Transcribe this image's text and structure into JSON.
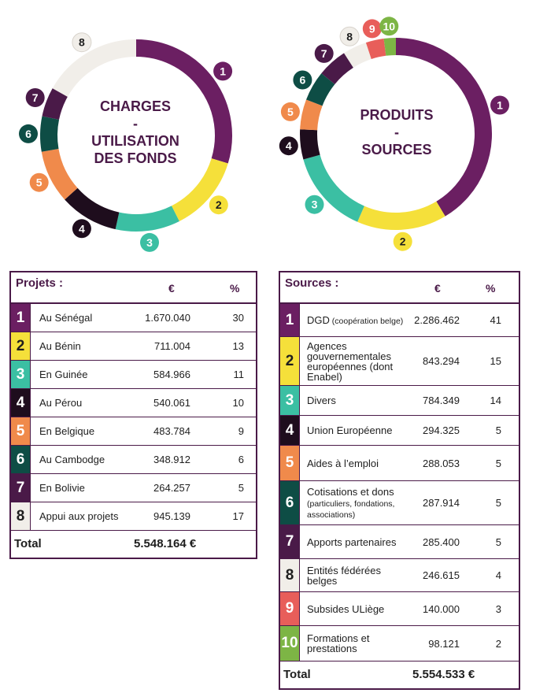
{
  "chart_data": [
    {
      "type": "pie",
      "title": "CHARGES - UTILISATION DES FONDS",
      "title_lines": [
        "CHARGES",
        "-",
        "UTILISATION",
        "DES FONDS"
      ],
      "header": "Projets :",
      "currency_header": "€",
      "percent_header": "%",
      "categories": [
        "Au Sénégal",
        "Au Bénin",
        "En Guinée",
        "Au Pérou",
        "En Belgique",
        "Au Cambodge",
        "En Bolivie",
        "Appui aux projets"
      ],
      "numbers": [
        "1",
        "2",
        "3",
        "4",
        "5",
        "6",
        "7",
        "8"
      ],
      "amounts": [
        "1.670.040",
        "711.004",
        "584.966",
        "540.061",
        "483.784",
        "348.912",
        "264.257",
        "945.139"
      ],
      "values": [
        30,
        13,
        11,
        10,
        9,
        6,
        5,
        17
      ],
      "colors": [
        "#6b1f62",
        "#f5e03a",
        "#3bbfa3",
        "#1e0d1d",
        "#f08a4b",
        "#0e4d45",
        "#4a1a48",
        "#f1eee9"
      ],
      "total_label": "Total",
      "total": "5.548.164 €"
    },
    {
      "type": "pie",
      "title": "PRODUITS - SOURCES",
      "title_lines": [
        "PRODUITS",
        "-",
        "SOURCES"
      ],
      "header": "Sources :",
      "currency_header": "€",
      "percent_header": "%",
      "categories": [
        "DGD",
        "Agences gouvernementales européennes (dont Enabel)",
        "Divers",
        "Union Européenne",
        "Aides à l’emploi",
        "Cotisations et dons",
        "Apports partenaires",
        "Entités fédérées belges",
        "Subsides ULiège",
        "Formations et prestations"
      ],
      "category_notes": [
        "(coopération belge)",
        "",
        "",
        "",
        "",
        "(particuliers, fondations, associations)",
        "",
        "",
        "",
        ""
      ],
      "numbers": [
        "1",
        "2",
        "3",
        "4",
        "5",
        "6",
        "7",
        "8",
        "9",
        "10"
      ],
      "amounts": [
        "2.286.462",
        "843.294",
        "784.349",
        "294.325",
        "288.053",
        "287.914",
        "285.400",
        "246.615",
        "140.000",
        "98.121"
      ],
      "values": [
        41,
        15,
        14,
        5,
        5,
        5,
        5,
        4,
        3,
        2
      ],
      "colors": [
        "#6b1f62",
        "#f5e03a",
        "#3bbfa3",
        "#1e0d1d",
        "#f08a4b",
        "#0e4d45",
        "#4a1a48",
        "#f1eee9",
        "#e85e5a",
        "#7db545"
      ],
      "total_label": "Total",
      "total": "5.554.533 €"
    }
  ]
}
